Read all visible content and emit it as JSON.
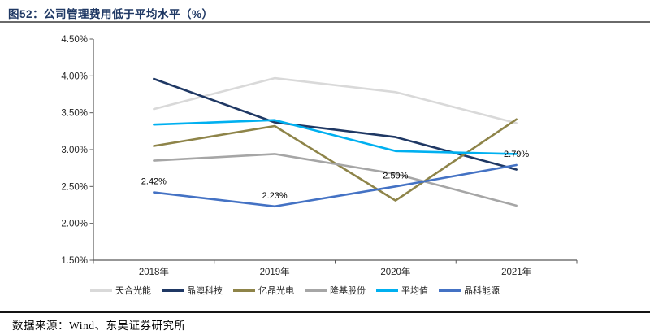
{
  "header": {
    "title": "图52：公司管理费用低于平均水平（%）"
  },
  "footer": {
    "source": "数据来源：Wind、东吴证券研究所"
  },
  "chart_data": {
    "type": "line",
    "title": "公司管理费用低于平均水平（%）",
    "categories": [
      "2018年",
      "2019年",
      "2020年",
      "2021年"
    ],
    "series": [
      {
        "name": "天合光能",
        "color": "#D9D9D9",
        "values": [
          3.55,
          3.97,
          3.78,
          3.36
        ]
      },
      {
        "name": "晶澳科技",
        "color": "#1F3864",
        "values": [
          3.96,
          3.37,
          3.17,
          2.73
        ]
      },
      {
        "name": "亿晶光电",
        "color": "#8E8449",
        "values": [
          3.05,
          3.32,
          2.31,
          3.41
        ]
      },
      {
        "name": "隆基股份",
        "color": "#A6A6A6",
        "values": [
          2.85,
          2.94,
          2.67,
          2.24
        ]
      },
      {
        "name": "平均值",
        "color": "#00B0F0",
        "values": [
          3.34,
          3.4,
          2.98,
          2.94
        ]
      },
      {
        "name": "晶科能源",
        "color": "#4472C4",
        "values": [
          2.42,
          2.23,
          2.5,
          2.79
        ],
        "data_labels": [
          "2.42%",
          "2.23%",
          "2.50%",
          "2.79%"
        ]
      }
    ],
    "ylim": [
      1.5,
      4.5
    ],
    "ytick_step": 0.5,
    "ytick_labels": [
      "1.50%",
      "2.00%",
      "2.50%",
      "3.00%",
      "3.50%",
      "4.00%",
      "4.50%"
    ],
    "xlabel": "",
    "ylabel": "",
    "grid": false,
    "legend_position": "bottom"
  }
}
